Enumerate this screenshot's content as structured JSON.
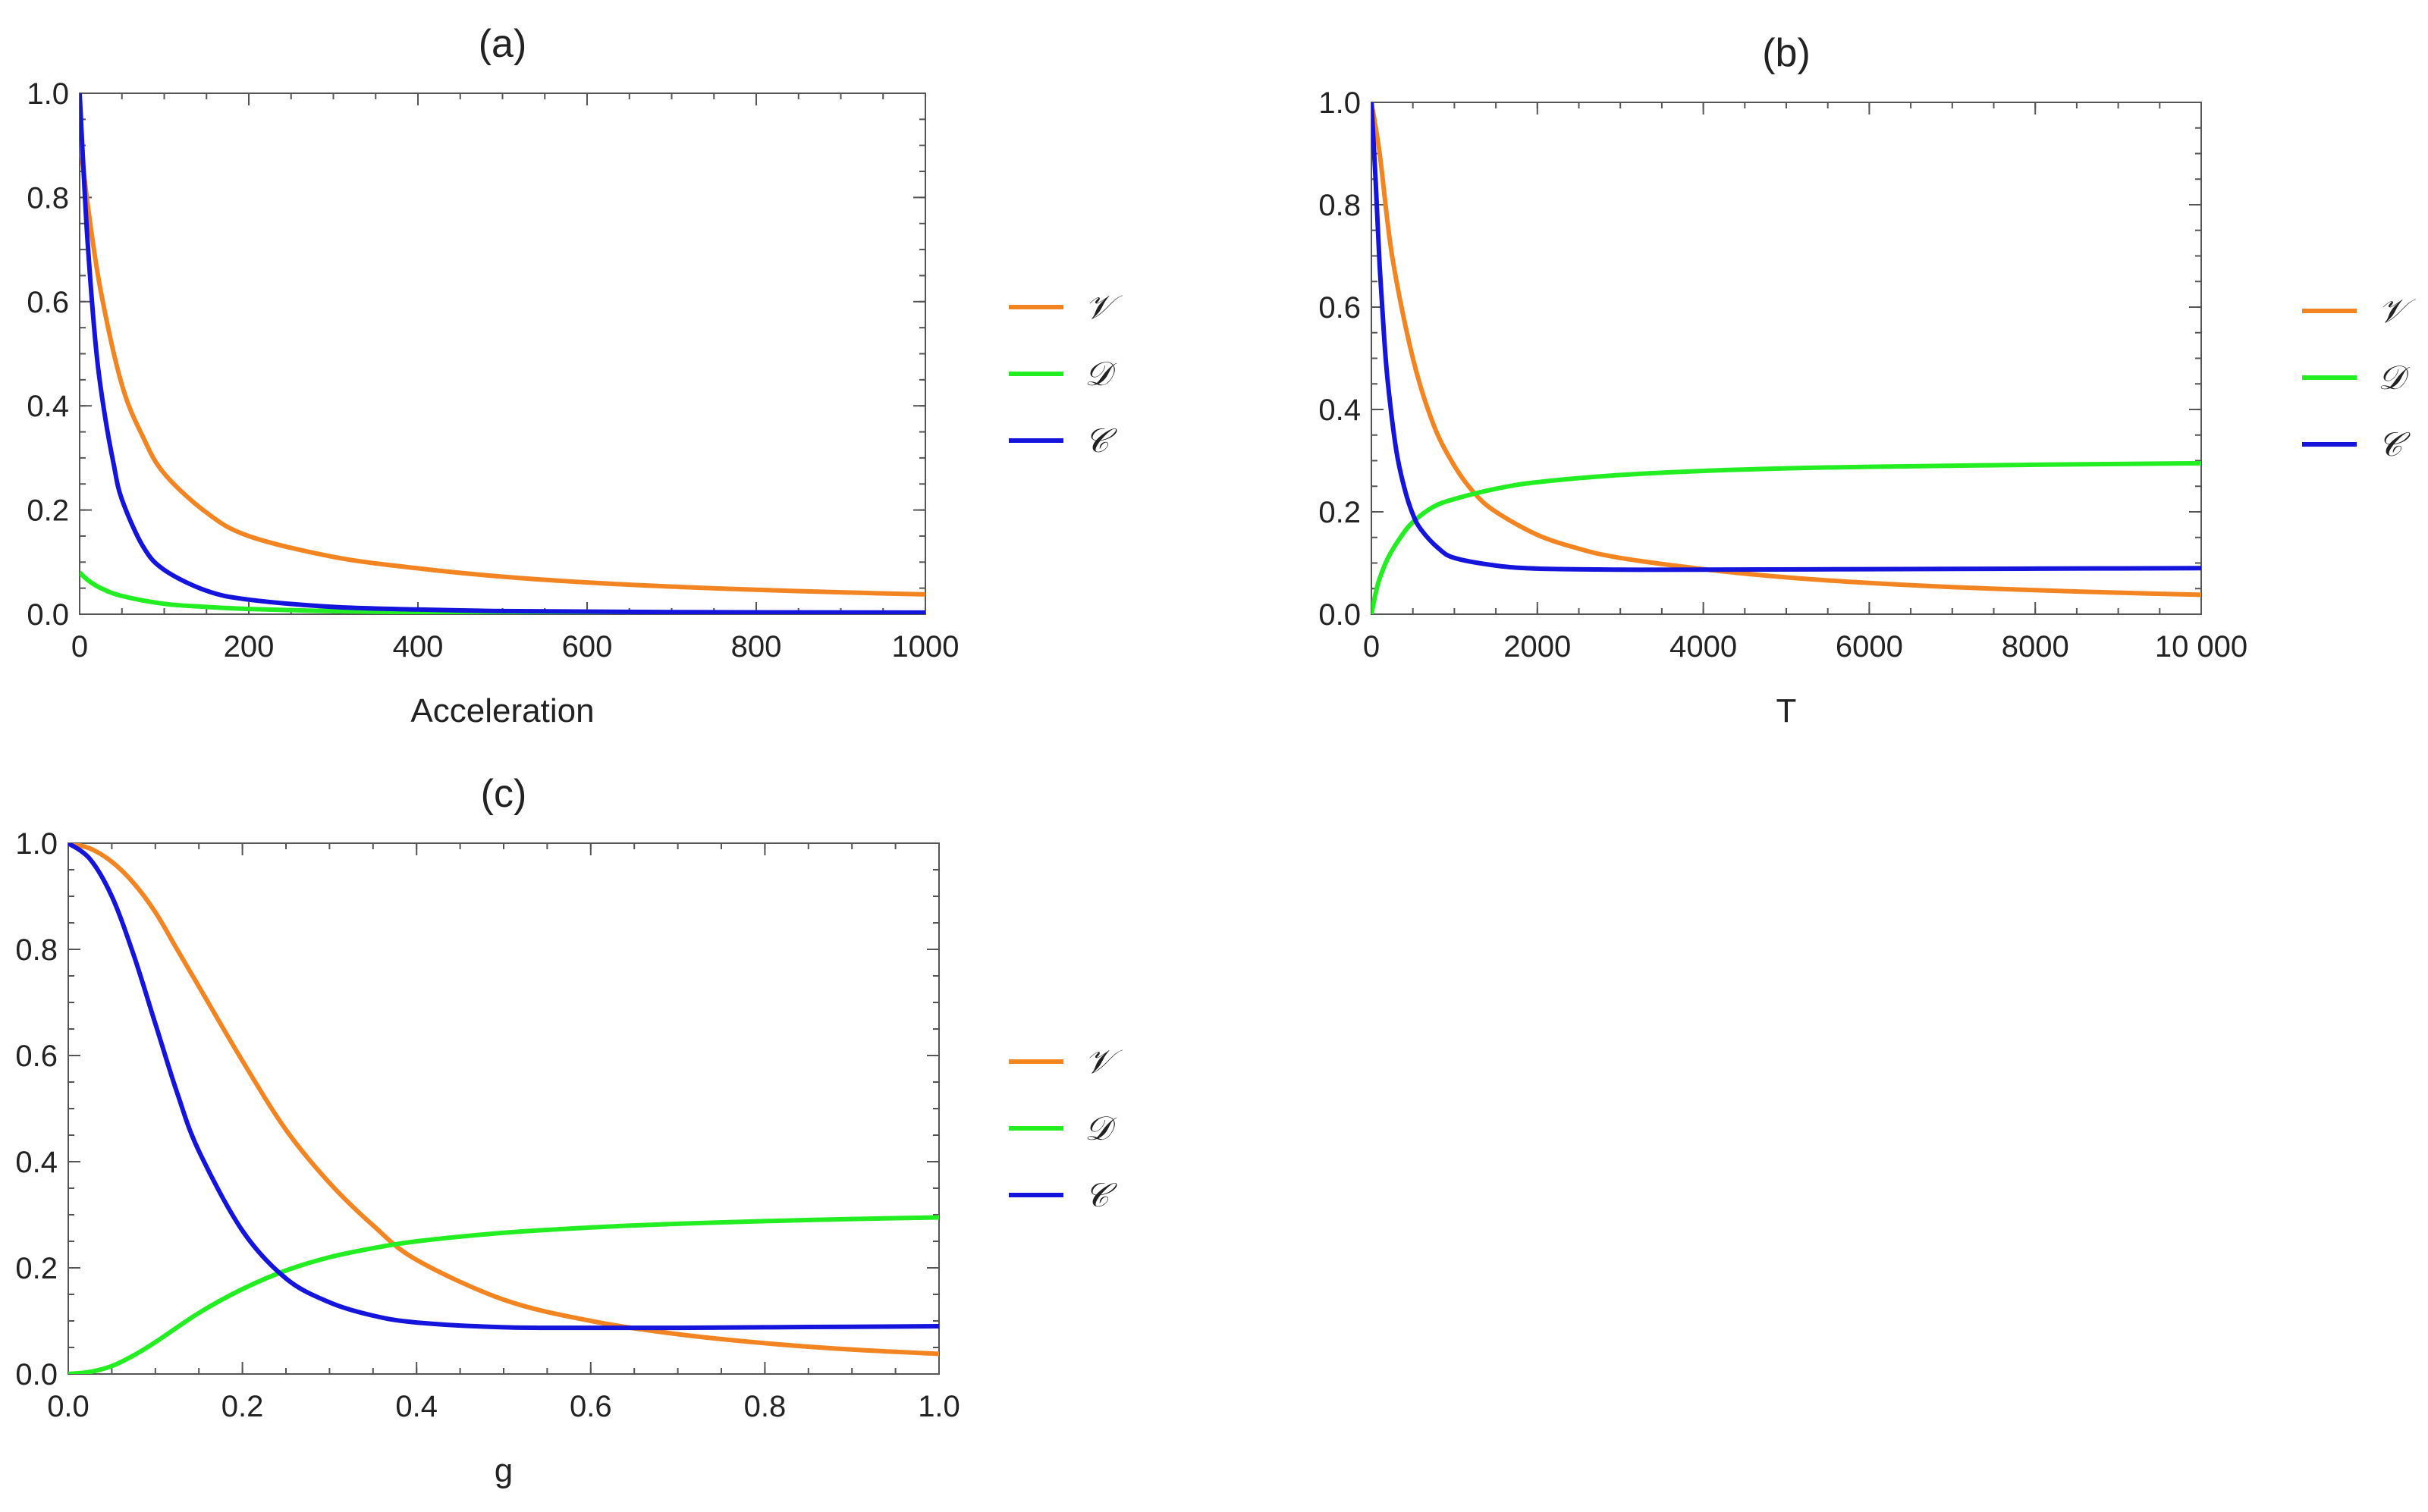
{
  "chart_data": [
    {
      "id": "a",
      "type": "line",
      "title": "(a)",
      "xlabel": "Acceleration",
      "ylabel": "",
      "xlim": [
        0,
        1000
      ],
      "ylim": [
        0,
        1.0
      ],
      "xticks": [
        0,
        200,
        400,
        600,
        800,
        1000
      ],
      "xtick_labels": [
        "0",
        "200",
        "400",
        "600",
        "800",
        "1000"
      ],
      "yticks": [
        0,
        0.2,
        0.4,
        0.6,
        0.8,
        1.0
      ],
      "ytick_labels": [
        "0.0",
        "0.2",
        "0.4",
        "0.6",
        "0.8",
        "1.0"
      ],
      "grid": false,
      "legend": "right",
      "series": [
        {
          "name": "𝒱",
          "color": "#F28522",
          "x": [
            0,
            10,
            25,
            50,
            75,
            100,
            150,
            200,
            300,
            400,
            500,
            600,
            700,
            800,
            900,
            1000
          ],
          "y": [
            0.92,
            0.78,
            0.62,
            0.44,
            0.34,
            0.27,
            0.195,
            0.15,
            0.11,
            0.088,
            0.072,
            0.061,
            0.053,
            0.047,
            0.042,
            0.038
          ]
        },
        {
          "name": "𝒟",
          "color": "#22EE22",
          "x": [
            0,
            10,
            25,
            50,
            100,
            150,
            200,
            300,
            400,
            500,
            700,
            1000
          ],
          "y": [
            0.08,
            0.065,
            0.05,
            0.035,
            0.02,
            0.014,
            0.01,
            0.006,
            0.004,
            0.003,
            0.002,
            0.001
          ]
        },
        {
          "name": "𝒞",
          "color": "#1414DC",
          "x": [
            0,
            5,
            10,
            20,
            30,
            40,
            50,
            75,
            100,
            150,
            200,
            300,
            400,
            500,
            700,
            1000
          ],
          "y": [
            1.0,
            0.84,
            0.7,
            0.5,
            0.38,
            0.29,
            0.22,
            0.13,
            0.085,
            0.045,
            0.028,
            0.014,
            0.009,
            0.006,
            0.004,
            0.003
          ]
        }
      ]
    },
    {
      "id": "b",
      "type": "line",
      "title": "(b)",
      "xlabel": "T",
      "ylabel": "",
      "xlim": [
        0,
        10000
      ],
      "ylim": [
        0,
        1.0
      ],
      "xticks": [
        0,
        2000,
        4000,
        6000,
        8000,
        10000
      ],
      "xtick_labels": [
        "0",
        "2000",
        "4000",
        "6000",
        "8000",
        "10 000"
      ],
      "yticks": [
        0,
        0.2,
        0.4,
        0.6,
        0.8,
        1.0
      ],
      "ytick_labels": [
        "0.0",
        "0.2",
        "0.4",
        "0.6",
        "0.8",
        "1.0"
      ],
      "grid": false,
      "legend": "right",
      "series": [
        {
          "name": "𝒱",
          "color": "#F28522",
          "x": [
            0,
            100,
            250,
            500,
            750,
            1000,
            1250,
            1500,
            2000,
            2500,
            3000,
            4000,
            5000,
            6000,
            7000,
            8000,
            9000,
            10000
          ],
          "y": [
            1.0,
            0.9,
            0.7,
            0.5,
            0.37,
            0.29,
            0.235,
            0.2,
            0.155,
            0.128,
            0.11,
            0.088,
            0.072,
            0.061,
            0.053,
            0.047,
            0.042,
            0.038
          ]
        },
        {
          "name": "𝒟",
          "color": "#22EE22",
          "x": [
            0,
            50,
            100,
            200,
            350,
            500,
            750,
            1000,
            1500,
            2000,
            3000,
            4000,
            5000,
            6000,
            8000,
            10000
          ],
          "y": [
            0.0,
            0.04,
            0.07,
            0.11,
            0.15,
            0.18,
            0.21,
            0.225,
            0.245,
            0.258,
            0.272,
            0.28,
            0.285,
            0.288,
            0.292,
            0.295
          ]
        },
        {
          "name": "𝒞",
          "color": "#1414DC",
          "x": [
            0,
            50,
            100,
            150,
            200,
            300,
            400,
            500,
            600,
            800,
            1000,
            1500,
            2000,
            3000,
            4000,
            6000,
            8000,
            10000
          ],
          "y": [
            1.0,
            0.85,
            0.68,
            0.55,
            0.45,
            0.32,
            0.245,
            0.195,
            0.165,
            0.13,
            0.11,
            0.095,
            0.089,
            0.087,
            0.087,
            0.088,
            0.089,
            0.09
          ]
        }
      ]
    },
    {
      "id": "c",
      "type": "line",
      "title": "(c)",
      "xlabel": "g",
      "ylabel": "",
      "xlim": [
        0,
        1.0
      ],
      "ylim": [
        0,
        1.0
      ],
      "xticks": [
        0,
        0.2,
        0.4,
        0.6,
        0.8,
        1.0
      ],
      "xtick_labels": [
        "0.0",
        "0.2",
        "0.4",
        "0.6",
        "0.8",
        "1.0"
      ],
      "yticks": [
        0,
        0.2,
        0.4,
        0.6,
        0.8,
        1.0
      ],
      "ytick_labels": [
        "0.0",
        "0.2",
        "0.4",
        "0.6",
        "0.8",
        "1.0"
      ],
      "grid": false,
      "legend": "right",
      "series": [
        {
          "name": "𝒱",
          "color": "#F28522",
          "x": [
            0,
            0.025,
            0.05,
            0.075,
            0.1,
            0.125,
            0.15,
            0.2,
            0.25,
            0.3,
            0.35,
            0.4,
            0.5,
            0.6,
            0.7,
            0.8,
            0.9,
            1.0
          ],
          "y": [
            1.0,
            0.99,
            0.965,
            0.925,
            0.87,
            0.8,
            0.73,
            0.59,
            0.46,
            0.36,
            0.28,
            0.215,
            0.14,
            0.1,
            0.075,
            0.058,
            0.046,
            0.038
          ]
        },
        {
          "name": "𝒟",
          "color": "#22EE22",
          "x": [
            0,
            0.025,
            0.05,
            0.075,
            0.1,
            0.15,
            0.2,
            0.25,
            0.3,
            0.35,
            0.4,
            0.5,
            0.6,
            0.7,
            0.8,
            0.9,
            1.0
          ],
          "y": [
            0.0,
            0.004,
            0.015,
            0.035,
            0.06,
            0.115,
            0.16,
            0.195,
            0.22,
            0.237,
            0.25,
            0.266,
            0.276,
            0.283,
            0.288,
            0.292,
            0.295
          ]
        },
        {
          "name": "𝒞",
          "color": "#1414DC",
          "x": [
            0,
            0.025,
            0.05,
            0.075,
            0.1,
            0.125,
            0.15,
            0.2,
            0.25,
            0.3,
            0.35,
            0.4,
            0.5,
            0.6,
            0.7,
            0.8,
            0.9,
            1.0
          ],
          "y": [
            1.0,
            0.97,
            0.9,
            0.79,
            0.66,
            0.53,
            0.42,
            0.27,
            0.18,
            0.135,
            0.11,
            0.097,
            0.088,
            0.087,
            0.087,
            0.088,
            0.089,
            0.09
          ]
        }
      ]
    }
  ]
}
